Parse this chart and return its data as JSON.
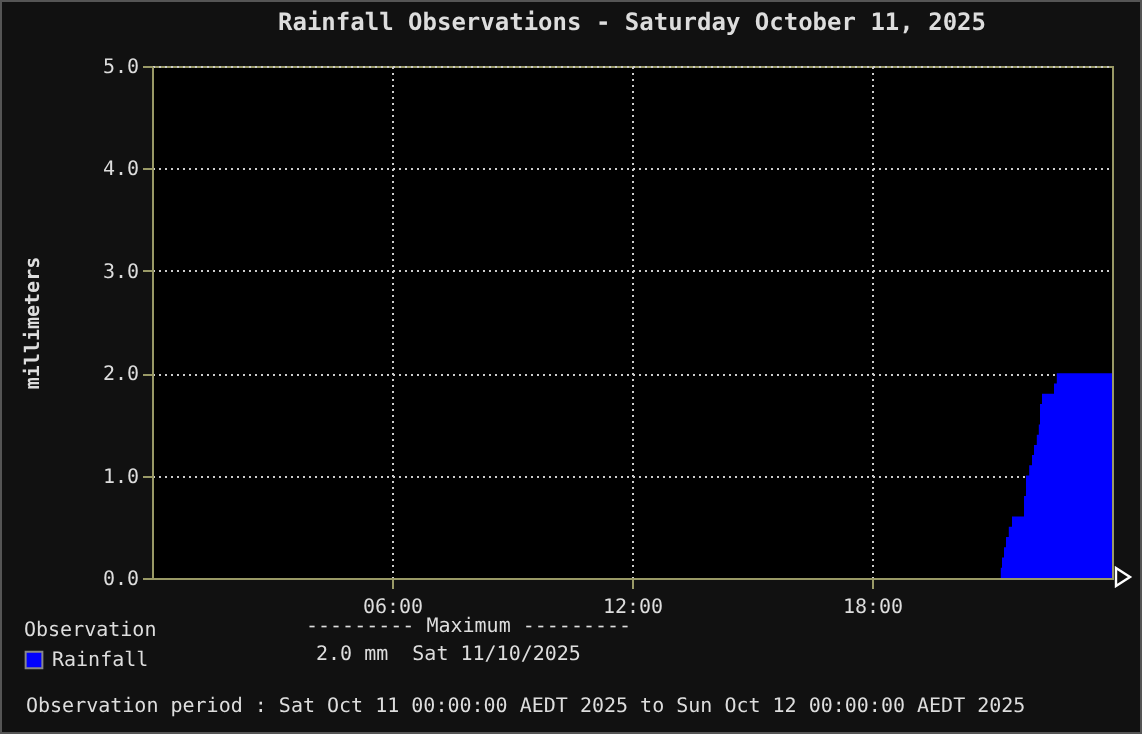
{
  "chart_data": {
    "type": "area",
    "title": "Rainfall Observations - Saturday October 11, 2025",
    "ylabel": "millimeters",
    "legend_title": "Observation",
    "x": [
      21.2,
      21.22,
      21.25,
      21.3,
      21.35,
      21.42,
      21.5,
      21.8,
      21.85,
      21.93,
      22.0,
      22.05,
      22.12,
      22.17,
      22.2,
      22.25,
      22.55,
      22.62,
      24
    ],
    "series": [
      {
        "name": "Rainfall",
        "color": "#0000ff",
        "values": [
          0,
          0.1,
          0.2,
          0.3,
          0.4,
          0.5,
          0.6,
          0.8,
          1.0,
          1.1,
          1.2,
          1.3,
          1.4,
          1.5,
          1.7,
          1.8,
          1.9,
          2.0,
          2.0
        ]
      }
    ],
    "xlim": [
      0,
      24
    ],
    "xticks": [
      {
        "value": 6,
        "label": "06:00"
      },
      {
        "value": 12,
        "label": "12:00"
      },
      {
        "value": 18,
        "label": "18:00"
      }
    ],
    "ylim": [
      0,
      5
    ],
    "yticks": [
      {
        "value": 0,
        "label": "0.0"
      },
      {
        "value": 1,
        "label": "1.0"
      },
      {
        "value": 2,
        "label": "2.0"
      },
      {
        "value": 3,
        "label": "3.0"
      },
      {
        "value": 4,
        "label": "4.0"
      },
      {
        "value": 5,
        "label": "5.0"
      }
    ],
    "grid": true,
    "legend": "bottom left",
    "annotations": [
      "--------- Maximum ---------",
      "2.0 mm  Sat 11/10/2025",
      "Observation period : Sat Oct 11 00:00:00 AEDT 2025 to Sun Oct 12 00:00:00 AEDT 2025"
    ]
  }
}
